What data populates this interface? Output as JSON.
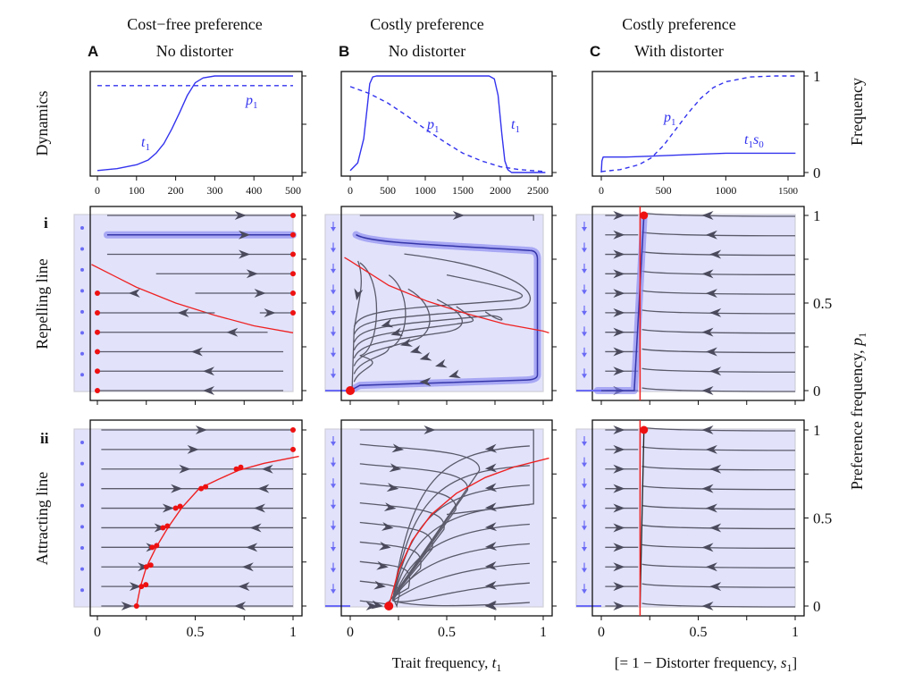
{
  "figure": {
    "column_titles": [
      {
        "letter": "A",
        "line1": "Cost−free preference",
        "line2": "No distorter"
      },
      {
        "letter": "B",
        "line1": "Costly preference",
        "line2": "No distorter"
      },
      {
        "letter": "C",
        "line1": "Costly preference",
        "line2": "With distorter"
      }
    ],
    "row_labels": {
      "dynamics": "Dynamics",
      "row_i_numeral": "i",
      "row_i": "Repelling line",
      "row_ii_numeral": "ii",
      "row_ii": "Attracting line"
    },
    "right_labels": {
      "frequency": "Frequency",
      "preference": "Preference frequency, ",
      "preference_var": "p",
      "preference_sub": "1"
    },
    "bottom_labels": {
      "trait": "Trait frequency, ",
      "trait_var": "t",
      "trait_sub": "1",
      "distorter": "[= 1 − Distorter frequency, ",
      "distorter_var": "s",
      "distorter_sub": "1",
      "distorter_close": "]"
    },
    "colors": {
      "trajectory": "#3333ee",
      "streamline": "#555566",
      "equilibrium_line": "#ee2222",
      "stable_point": "#ee1111",
      "shade": "#e2e2fb",
      "highlight": "#8080f0"
    }
  },
  "chart_data": [
    {
      "type": "line",
      "panel": "A-dynamics",
      "title": "Cost−free preference / No distorter",
      "xlabel": "",
      "ylabel": "Dynamics",
      "xlim": [
        0,
        510
      ],
      "ylim": [
        0,
        1
      ],
      "xticks": [
        0,
        100,
        200,
        300,
        400,
        500
      ],
      "yticks": [
        0,
        0.5,
        1
      ],
      "series": [
        {
          "name": "t1",
          "label": "t",
          "sub": "1",
          "style": "solid",
          "x": [
            0,
            50,
            100,
            130,
            150,
            170,
            190,
            210,
            230,
            250,
            270,
            300,
            350,
            400,
            500
          ],
          "y": [
            0.02,
            0.04,
            0.08,
            0.13,
            0.2,
            0.3,
            0.45,
            0.62,
            0.8,
            0.93,
            0.98,
            1.0,
            1.0,
            1.0,
            1.0
          ]
        },
        {
          "name": "p1",
          "label": "p",
          "sub": "1",
          "style": "dashed",
          "x": [
            0,
            500
          ],
          "y": [
            0.9,
            0.9
          ]
        }
      ]
    },
    {
      "type": "line",
      "panel": "B-dynamics",
      "title": "Costly preference / No distorter",
      "xlim": [
        0,
        2600
      ],
      "ylim": [
        0,
        1
      ],
      "xticks": [
        0,
        500,
        1000,
        1500,
        2000,
        2500
      ],
      "yticks": [
        0,
        0.5,
        1
      ],
      "series": [
        {
          "name": "t1",
          "label": "t",
          "sub": "1",
          "style": "solid",
          "x": [
            0,
            100,
            180,
            230,
            260,
            300,
            350,
            600,
            1000,
            1500,
            1850,
            1920,
            1970,
            2020,
            2060,
            2100,
            2150,
            2600
          ],
          "y": [
            0.02,
            0.1,
            0.35,
            0.7,
            0.92,
            0.99,
            1.0,
            1.0,
            1.0,
            1.0,
            1.0,
            0.97,
            0.8,
            0.4,
            0.12,
            0.03,
            0.0,
            0.0
          ]
        },
        {
          "name": "p1",
          "label": "p",
          "sub": "1",
          "style": "dashed",
          "x": [
            0,
            250,
            500,
            750,
            1000,
            1250,
            1500,
            1750,
            2000,
            2250,
            2600
          ],
          "y": [
            0.89,
            0.82,
            0.72,
            0.59,
            0.45,
            0.32,
            0.2,
            0.12,
            0.06,
            0.03,
            0.01
          ]
        }
      ]
    },
    {
      "type": "line",
      "panel": "C-dynamics",
      "title": "Costly preference / With distorter",
      "ylabel": "Frequency",
      "xlim": [
        0,
        1560
      ],
      "ylim": [
        0,
        1
      ],
      "xticks": [
        0,
        500,
        1000,
        1500
      ],
      "yticks": [
        0,
        0.5,
        1
      ],
      "ytick_labels": [
        "0",
        "",
        "1"
      ],
      "series": [
        {
          "name": "t1s0",
          "label": "t",
          "sub": "1",
          "label2": "s",
          "sub2": "0",
          "style": "solid",
          "x": [
            0,
            5,
            15,
            200,
            400,
            600,
            800,
            1000,
            1200,
            1560
          ],
          "y": [
            0.0,
            0.12,
            0.16,
            0.16,
            0.17,
            0.18,
            0.19,
            0.2,
            0.2,
            0.2
          ]
        },
        {
          "name": "p1",
          "label": "p",
          "sub": "1",
          "style": "dashed",
          "x": [
            0,
            150,
            300,
            400,
            500,
            600,
            700,
            800,
            900,
            1000,
            1200,
            1400,
            1560
          ],
          "y": [
            0.01,
            0.03,
            0.08,
            0.15,
            0.28,
            0.45,
            0.62,
            0.77,
            0.88,
            0.94,
            0.99,
            1.0,
            1.0
          ]
        }
      ]
    },
    {
      "type": "scatter",
      "panel": "A-i",
      "row": "Repelling line",
      "xlim": [
        -0.03,
        1.03
      ],
      "ylim": [
        0,
        1
      ],
      "xticks": [
        0,
        0.25,
        0.5,
        0.75,
        1
      ],
      "yticks": [
        0,
        0.25,
        0.5,
        0.75,
        1
      ],
      "separatrix": {
        "x": [
          0,
          0.2,
          0.4,
          0.6,
          0.8,
          1.0
        ],
        "y": [
          0.71,
          0.59,
          0.5,
          0.43,
          0.37,
          0.33
        ]
      },
      "streamlines": [
        {
          "y": 1.0,
          "x0": 0.05,
          "x1": 1.0,
          "arrow_x": 0.72,
          "dir": "right"
        },
        {
          "y": 0.889,
          "x0": 0.05,
          "x1": 1.0,
          "arrow_x": 0.74,
          "dir": "right",
          "highlight": true
        },
        {
          "y": 0.778,
          "x0": 0.05,
          "x1": 1.0,
          "arrow_x": 0.74,
          "dir": "right"
        },
        {
          "y": 0.667,
          "x0": 0.3,
          "x1": 1.0,
          "arrow_x": 0.78,
          "dir": "right"
        },
        {
          "y": 0.556,
          "x0": 0.0,
          "x1": 0.2,
          "arrow_x": 0.2,
          "dir": "left",
          "x0b": 0.5,
          "x1b": 1.0,
          "arrow_xb": 0.82
        },
        {
          "y": 0.444,
          "x0": 0.0,
          "x1": 0.6,
          "arrow_x": 0.45,
          "dir": "left",
          "x0b": 0.83,
          "x1b": 1.0,
          "arrow_xb": 0.87
        },
        {
          "y": 0.333,
          "x0": 0.0,
          "x1": 0.87,
          "arrow_x": 0.7,
          "dir": "left"
        },
        {
          "y": 0.222,
          "x0": 0.0,
          "x1": 0.95,
          "arrow_x": 0.52,
          "dir": "left"
        },
        {
          "y": 0.111,
          "x0": 0.0,
          "x1": 0.95,
          "arrow_x": 0.58,
          "dir": "left"
        },
        {
          "y": 0.0,
          "x0": 0.0,
          "x1": 0.95,
          "arrow_x": 0.58,
          "dir": "left"
        }
      ],
      "stable_points": [
        {
          "x": 1,
          "y": 1
        },
        {
          "x": 1,
          "y": 0.889
        },
        {
          "x": 1,
          "y": 0.778
        },
        {
          "x": 1,
          "y": 0.667
        },
        {
          "x": 1,
          "y": 0.556
        },
        {
          "x": 1,
          "y": 0.444
        },
        {
          "x": 0,
          "y": 0.556
        },
        {
          "x": 0,
          "y": 0.444
        },
        {
          "x": 0,
          "y": 0.333
        },
        {
          "x": 0,
          "y": 0.222
        },
        {
          "x": 0,
          "y": 0.111
        },
        {
          "x": 0,
          "y": 0.0
        }
      ],
      "side_marker": "dots"
    },
    {
      "type": "scatter",
      "panel": "B-i",
      "row": "Repelling line",
      "xlim": [
        -0.03,
        1.03
      ],
      "ylim": [
        0,
        1
      ],
      "separatrix": {
        "x": [
          0,
          0.2,
          0.4,
          0.6,
          0.8,
          1.0
        ],
        "y": [
          0.74,
          0.6,
          0.51,
          0.44,
          0.38,
          0.34
        ]
      },
      "stable_points": [
        {
          "x": 0,
          "y": 0
        }
      ],
      "side_marker": "down-arrows",
      "highlighted_cycle": true
    },
    {
      "type": "scatter",
      "panel": "C-i",
      "row": "Repelling line",
      "xlim": [
        -0.03,
        1.03
      ],
      "ylim": [
        0,
        1
      ],
      "yticks": [
        0,
        0.5,
        1
      ],
      "ytick_labels": [
        "0",
        "0.5",
        "1"
      ],
      "vertical_line_x": 0.2,
      "stable_points": [
        {
          "x": 0.22,
          "y": 1
        }
      ],
      "side_marker": "down-arrows",
      "left_arrow_x": 0.08,
      "right_arrow_x": 0.55
    },
    {
      "type": "scatter",
      "panel": "A-ii",
      "row": "Attracting line",
      "xlim": [
        -0.03,
        1.03
      ],
      "ylim": [
        0,
        1
      ],
      "attracting_curve": {
        "x": [
          0.2,
          0.22,
          0.25,
          0.3,
          0.36,
          0.43,
          0.52,
          0.62,
          0.72,
          0.85,
          1.03
        ],
        "y": [
          0.0,
          0.11,
          0.22,
          0.333,
          0.444,
          0.556,
          0.667,
          0.72,
          0.77,
          0.81,
          0.85
        ]
      },
      "stable_points": [
        {
          "x": 0.2,
          "y": 0
        },
        {
          "x": 0.225,
          "y": 0.111
        },
        {
          "x": 0.25,
          "y": 0.222
        },
        {
          "x": 0.28,
          "y": 0.333
        },
        {
          "x": 0.335,
          "y": 0.444
        },
        {
          "x": 0.4,
          "y": 0.556
        },
        {
          "x": 0.53,
          "y": 0.667
        },
        {
          "x": 0.71,
          "y": 0.778
        },
        {
          "x": 1,
          "y": 0.889
        },
        {
          "x": 1,
          "y": 1
        }
      ],
      "side_marker": "dots"
    },
    {
      "type": "scatter",
      "panel": "B-ii",
      "row": "Attracting line",
      "xlim": [
        -0.03,
        1.03
      ],
      "ylim": [
        0,
        1
      ],
      "attracting_curve": {
        "x": [
          0.2,
          0.25,
          0.32,
          0.42,
          0.55,
          0.7,
          0.85,
          1.03
        ],
        "y": [
          0.0,
          0.2,
          0.37,
          0.52,
          0.64,
          0.73,
          0.79,
          0.84
        ]
      },
      "stable_points": [
        {
          "x": 0.2,
          "y": 0
        }
      ],
      "side_marker": "down-arrows"
    },
    {
      "type": "scatter",
      "panel": "C-ii",
      "row": "Attracting line",
      "xlim": [
        -0.03,
        1.03
      ],
      "ylim": [
        0,
        1
      ],
      "yticks": [
        0,
        0.5,
        1
      ],
      "ytick_labels": [
        "0",
        "0.5",
        "1"
      ],
      "vertical_line_x": 0.2,
      "stable_points": [
        {
          "x": 0.22,
          "y": 1
        }
      ],
      "side_marker": "down-arrows"
    }
  ],
  "axes": {
    "bottom_ticks": [
      "0",
      "0.5",
      "1"
    ]
  }
}
